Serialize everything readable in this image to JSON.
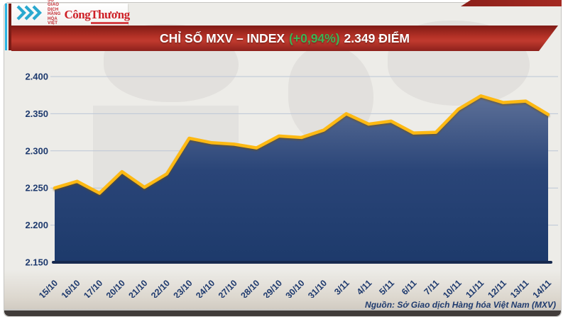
{
  "header": {
    "logo": {
      "mxv_lines": [
        "SỞ GIAO DỊCH",
        "HÀNG HÓA",
        "VIỆT NAM"
      ],
      "brand": "CôngThương"
    },
    "banner": {
      "title": "CHỈ SỐ MXV – INDEX",
      "change": "(+0,94%)",
      "value": "2.349 ĐIỂM"
    }
  },
  "chart_data": {
    "type": "area",
    "title": "CHỈ SỐ MXV – INDEX (+0,94%) 2.349 ĐIỂM",
    "x": [
      "15/10",
      "16/10",
      "17/10",
      "20/10",
      "21/10",
      "22/10",
      "23/10",
      "24/10",
      "27/10",
      "28/10",
      "29/10",
      "30/10",
      "31/10",
      "3/11",
      "4/11",
      "5/11",
      "6/11",
      "7/11",
      "10/11",
      "11/11",
      "12/11",
      "13/11",
      "14/11"
    ],
    "values": [
      2250,
      2259,
      2243,
      2272,
      2251,
      2269,
      2317,
      2311,
      2309,
      2304,
      2320,
      2318,
      2328,
      2350,
      2336,
      2340,
      2324,
      2325,
      2356,
      2374,
      2365,
      2367,
      2349
    ],
    "ylim": [
      2150,
      2400
    ],
    "yticks": [
      {
        "value": 2400,
        "label": "2.400"
      },
      {
        "value": 2350,
        "label": "2.350"
      },
      {
        "value": 2300,
        "label": "2.300"
      },
      {
        "value": 2250,
        "label": "2.250"
      },
      {
        "value": 2200,
        "label": "2.200"
      },
      {
        "value": 2150,
        "label": "2.150"
      }
    ],
    "grid": true,
    "legend": "none",
    "line_color": "#FDB913",
    "fill_color_top": "#5d7098",
    "fill_color_bottom": "#1d3a6b",
    "axis_color": "#16294F",
    "label_color": "#1E3A6E"
  },
  "footer": {
    "source": "Nguồn: Sở Giao dịch Hàng hóa Việt Nam (MXV)"
  }
}
